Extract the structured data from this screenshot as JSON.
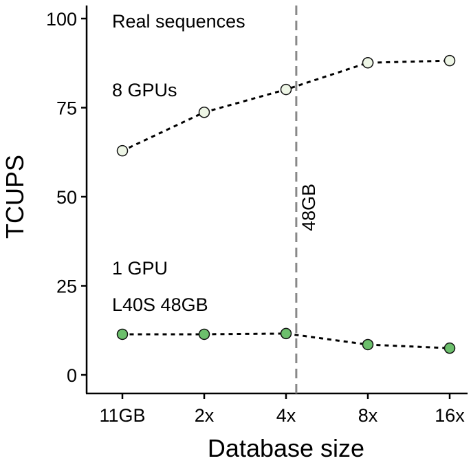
{
  "chart_data": {
    "type": "line",
    "xlabel": "Database size",
    "ylabel": "TCUPS",
    "categories": [
      "11GB",
      "2x",
      "4x",
      "8x",
      "16x"
    ],
    "yticks": [
      0,
      25,
      50,
      75,
      100
    ],
    "ylim": [
      0,
      100
    ],
    "grid": false,
    "series": [
      {
        "name": "8 GPUs",
        "values": [
          62.9,
          73.7,
          80.1,
          87.6,
          88.2
        ],
        "color": "#eef6e6"
      },
      {
        "name": "1 GPU",
        "values": [
          11.4,
          11.4,
          11.6,
          8.5,
          7.5
        ],
        "color": "#6cbf6c"
      }
    ],
    "reference_line": {
      "label": "48GB",
      "position": 2.125,
      "color": "#888888"
    },
    "annotations": {
      "panel": "Real sequences",
      "multi_gpu": "8 GPUs",
      "single_gpu": "1 GPU",
      "gpu_model": "L40S 48GB"
    }
  }
}
